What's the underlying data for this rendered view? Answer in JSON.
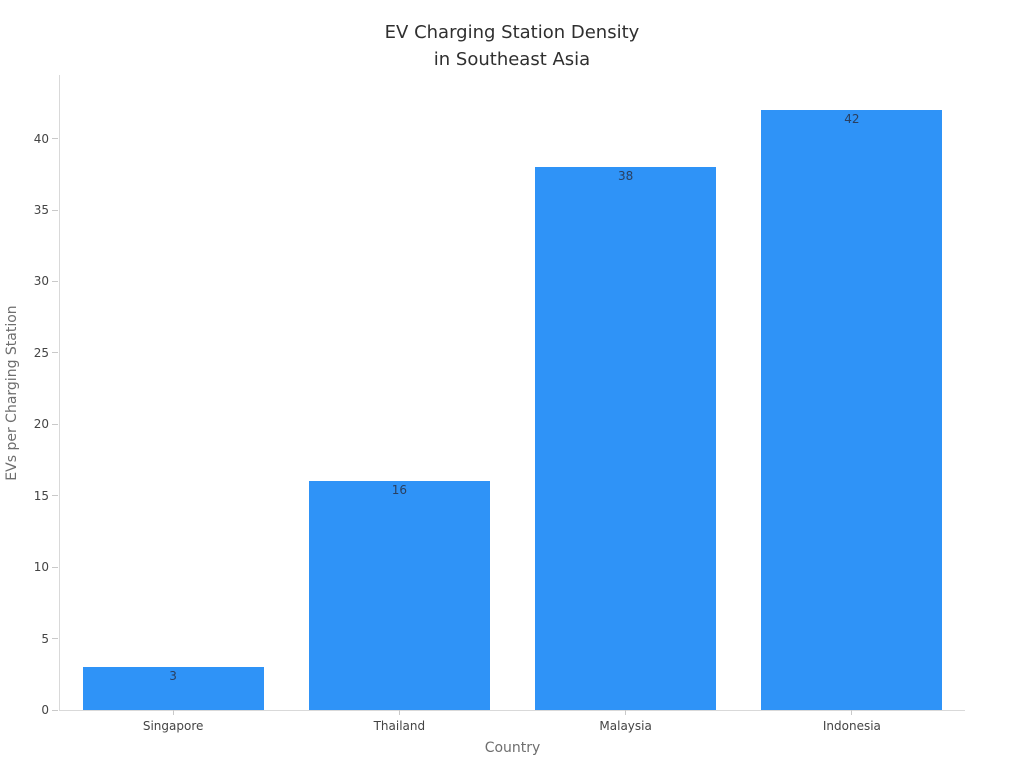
{
  "chart_data": {
    "type": "bar",
    "title": "EV Charging Station Density\nin Southeast Asia",
    "xlabel": "Country",
    "ylabel": "EVs per Charging Station",
    "categories": [
      "Singapore",
      "Thailand",
      "Malaysia",
      "Indonesia"
    ],
    "values": [
      3,
      16,
      38,
      42
    ],
    "bar_value_labels": [
      "3",
      "16",
      "38",
      "42"
    ],
    "ylim": [
      0,
      44.45
    ],
    "yticks": [
      0,
      5,
      10,
      15,
      20,
      25,
      30,
      35,
      40
    ],
    "grid": false,
    "legend": "none",
    "bar_width_fraction": 0.8,
    "colors": {
      "background": "#ffffff",
      "bar": "#2F93F7",
      "bar_value_label": "#2a3f5f",
      "axis_line": "#d9d9d9",
      "tick_mark": "#c9c9c9",
      "tick_label": "#444444",
      "axis_title": "#6e6e6e",
      "title": "#2f2f2f"
    }
  }
}
